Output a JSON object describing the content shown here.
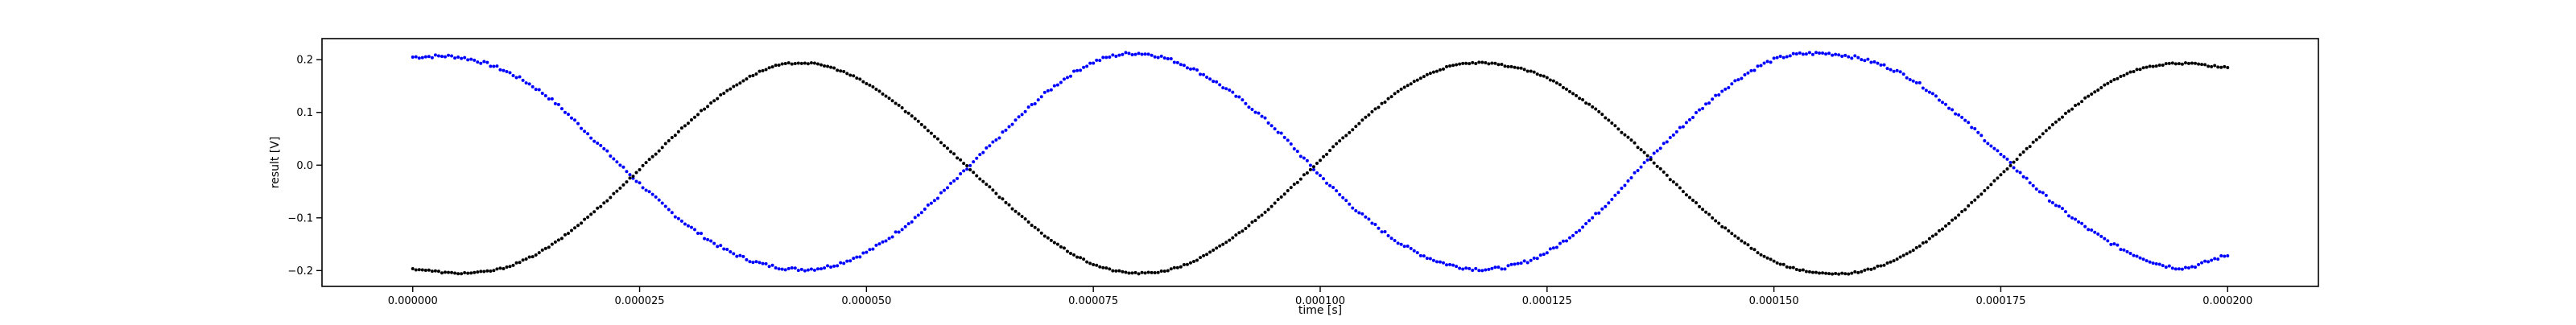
{
  "chart_data": {
    "type": "scatter",
    "title": "",
    "xlabel": "time [s]",
    "ylabel": "result [V]",
    "xlim": [
      -1e-05,
      0.00021
    ],
    "ylim": [
      -0.23,
      0.24
    ],
    "grid": false,
    "legend": "none",
    "x_ticks": [
      0,
      2.5e-05,
      5e-05,
      7.5e-05,
      0.0001,
      0.000125,
      0.00015,
      0.000175,
      0.0002
    ],
    "x_tick_labels": [
      "0.000000",
      "0.000025",
      "0.000050",
      "0.000075",
      "0.000100",
      "0.000125",
      "0.000150",
      "0.000175",
      "0.000200"
    ],
    "y_ticks": [
      -0.2,
      -0.1,
      0.0,
      0.1,
      0.2
    ],
    "y_tick_labels": [
      "−0.2",
      "−0.1",
      "0.0",
      "0.1",
      "0.2"
    ],
    "series": [
      {
        "color": "#0000ff",
        "marker": "dot",
        "points": [
          [
            0,
            0.205
          ],
          [
            5e-06,
            0.205
          ],
          [
            1e-05,
            0.18
          ],
          [
            1.5e-05,
            0.128
          ],
          [
            2e-05,
            0.048
          ],
          [
            2.5e-05,
            -0.035
          ],
          [
            3e-05,
            -0.11
          ],
          [
            3.5e-05,
            -0.165
          ],
          [
            4e-05,
            -0.193
          ],
          [
            4.5e-05,
            -0.195
          ],
          [
            5e-05,
            -0.165
          ],
          [
            5.5e-05,
            -0.105
          ],
          [
            6e-05,
            -0.025
          ],
          [
            6.5e-05,
            0.06
          ],
          [
            7e-05,
            0.14
          ],
          [
            7.5e-05,
            0.195
          ],
          [
            8e-05,
            0.212
          ],
          [
            8.5e-05,
            0.19
          ],
          [
            9e-05,
            0.14
          ],
          [
            9.5e-05,
            0.07
          ],
          [
            0.0001,
            -0.02
          ],
          [
            0.000105,
            -0.1
          ],
          [
            0.00011,
            -0.16
          ],
          [
            0.000115,
            -0.192
          ],
          [
            0.00012,
            -0.195
          ],
          [
            0.000125,
            -0.165
          ],
          [
            0.00013,
            -0.1
          ],
          [
            0.000135,
            -0.01
          ],
          [
            0.00014,
            0.075
          ],
          [
            0.000145,
            0.15
          ],
          [
            0.00015,
            0.2
          ],
          [
            0.000155,
            0.212
          ],
          [
            0.00016,
            0.2
          ],
          [
            0.000165,
            0.165
          ],
          [
            0.00017,
            0.1
          ],
          [
            0.000175,
            0.02
          ],
          [
            0.00018,
            -0.06
          ],
          [
            0.000185,
            -0.125
          ],
          [
            0.00019,
            -0.172
          ],
          [
            0.000195,
            -0.195
          ],
          [
            0.0002,
            -0.172
          ]
        ]
      },
      {
        "color": "#000000",
        "marker": "dot",
        "points": [
          [
            0,
            -0.197
          ],
          [
            5e-06,
            -0.205
          ],
          [
            1e-05,
            -0.195
          ],
          [
            1.5e-05,
            -0.155
          ],
          [
            2e-05,
            -0.088
          ],
          [
            2.5e-05,
            -0.008
          ],
          [
            3e-05,
            0.075
          ],
          [
            3.5e-05,
            0.145
          ],
          [
            4e-05,
            0.188
          ],
          [
            4.5e-05,
            0.19
          ],
          [
            5e-05,
            0.155
          ],
          [
            5.5e-05,
            0.093
          ],
          [
            6e-05,
            0.015
          ],
          [
            6.5e-05,
            -0.065
          ],
          [
            7e-05,
            -0.138
          ],
          [
            7.5e-05,
            -0.188
          ],
          [
            8e-05,
            -0.205
          ],
          [
            8.5e-05,
            -0.19
          ],
          [
            9e-05,
            -0.142
          ],
          [
            9.5e-05,
            -0.072
          ],
          [
            0.0001,
            0.01
          ],
          [
            0.000105,
            0.09
          ],
          [
            0.00011,
            0.155
          ],
          [
            0.000115,
            0.19
          ],
          [
            0.00012,
            0.19
          ],
          [
            0.000125,
            0.165
          ],
          [
            0.00013,
            0.11
          ],
          [
            0.000135,
            0.035
          ],
          [
            0.00014,
            -0.05
          ],
          [
            0.000145,
            -0.125
          ],
          [
            0.00015,
            -0.182
          ],
          [
            0.000155,
            -0.205
          ],
          [
            0.00016,
            -0.2
          ],
          [
            0.000165,
            -0.165
          ],
          [
            0.00017,
            -0.1
          ],
          [
            0.000175,
            -0.018
          ],
          [
            0.00018,
            0.065
          ],
          [
            0.000185,
            0.135
          ],
          [
            0.00019,
            0.18
          ],
          [
            0.000195,
            0.193
          ],
          [
            0.0002,
            0.185
          ]
        ]
      }
    ]
  }
}
